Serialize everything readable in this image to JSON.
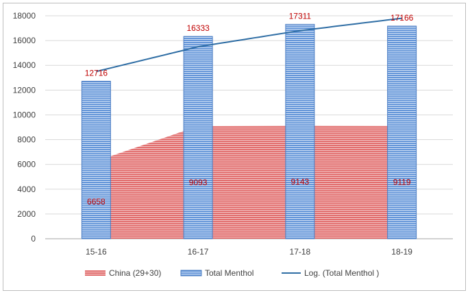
{
  "chart_data": {
    "type": "bar",
    "categories": [
      "15-16",
      "16-17",
      "17-18",
      "18-19"
    ],
    "ylim": [
      0,
      18000
    ],
    "yticks": [
      0,
      2000,
      4000,
      6000,
      8000,
      10000,
      12000,
      14000,
      16000,
      18000
    ],
    "grid": true,
    "legend_position": "bottom",
    "series": [
      {
        "name": "China (29+30)",
        "kind": "area",
        "values": [
          6658,
          9093,
          9143,
          9119
        ],
        "color": "#e06666",
        "label_color": "#c00000"
      },
      {
        "name": "Total Menthol",
        "kind": "bar",
        "values": [
          12716,
          16333,
          17311,
          17166
        ],
        "color": "#5b8fd6",
        "label_color": "#c00000"
      },
      {
        "name": "Log. (Total Menthol )",
        "kind": "trendline-log",
        "values": [
          13500,
          15500,
          16800,
          17800
        ],
        "color": "#2e6da4"
      }
    ]
  }
}
